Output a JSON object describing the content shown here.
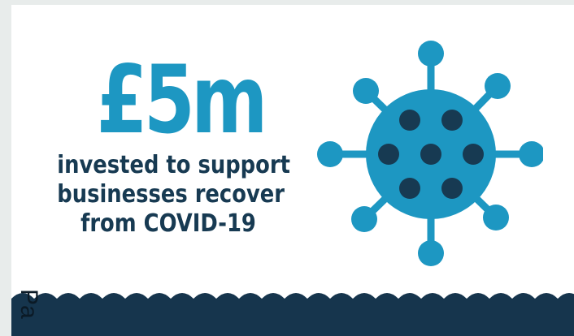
{
  "infographic": {
    "amount": "£5m",
    "caption_lines": [
      "invested to support",
      "businesses recover",
      "from COVID-19"
    ]
  },
  "footer": {
    "side_label": "Pa"
  },
  "icons": {
    "main": "virus-icon"
  },
  "colors": {
    "accent_blue": "#1d97c2",
    "dark_navy": "#173a52",
    "band_navy": "#16354d",
    "background": "#e8eceb"
  }
}
